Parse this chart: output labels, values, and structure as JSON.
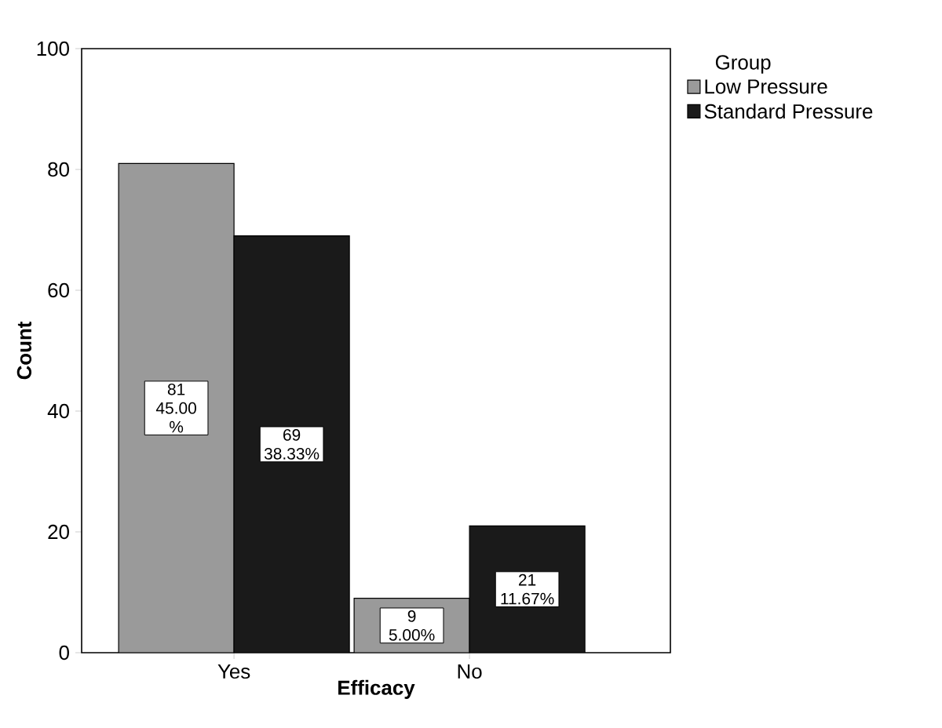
{
  "chart_data": {
    "type": "bar",
    "xlabel": "Efficacy",
    "ylabel": "Count",
    "legend_title": "Group",
    "categories": [
      "Yes",
      "No"
    ],
    "series": [
      {
        "name": "Low Pressure",
        "color": "#9a9a9a",
        "values": [
          81,
          9
        ],
        "value_labels": [
          "81 45.00 %",
          "9 5.00%"
        ]
      },
      {
        "name": "Standard Pressure",
        "color": "#1a1a1a",
        "values": [
          69,
          21
        ],
        "value_labels": [
          "69 38.33%",
          "21 11.67%"
        ]
      }
    ],
    "ylim": [
      0,
      100
    ],
    "yticks": [
      0,
      20,
      40,
      60,
      80,
      100
    ],
    "grid": false,
    "legend": "top right"
  }
}
